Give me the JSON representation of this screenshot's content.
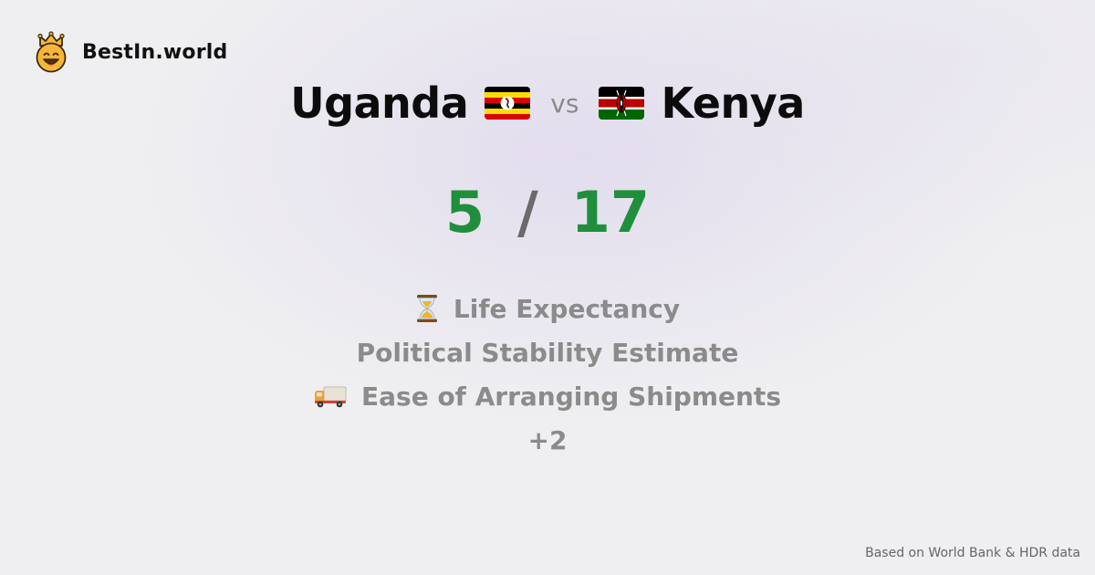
{
  "brand": {
    "name": "BestIn.world",
    "icon": "crowned-smiley-icon"
  },
  "comparison": {
    "left": {
      "name": "Uganda",
      "flag": "uganda-flag-icon"
    },
    "vs_label": "vs",
    "right": {
      "name": "Kenya",
      "flag": "kenya-flag-icon"
    }
  },
  "score": {
    "left": "5",
    "separator": "/",
    "right": "17"
  },
  "metrics": [
    {
      "label": "Life Expectancy",
      "icon": "hourglass-icon"
    },
    {
      "label": "Political Stability Estimate",
      "icon": ""
    },
    {
      "label": "Ease of Arranging Shipments",
      "icon": "delivery-truck-icon"
    }
  ],
  "more": "+2",
  "footer": "Based on World Bank & HDR data",
  "colors": {
    "score": "#1f8f3c",
    "muted": "#8b8b8b"
  }
}
